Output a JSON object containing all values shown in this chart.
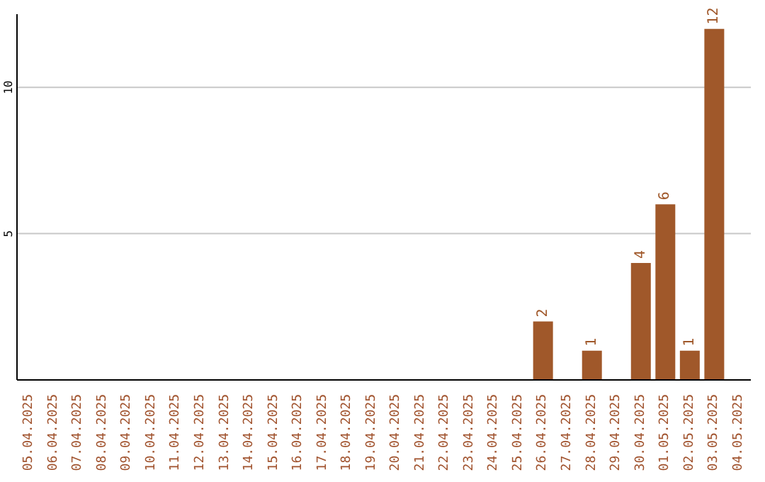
{
  "chart_data": {
    "type": "bar",
    "categories": [
      "05.04.2025",
      "06.04.2025",
      "07.04.2025",
      "08.04.2025",
      "09.04.2025",
      "10.04.2025",
      "11.04.2025",
      "12.04.2025",
      "13.04.2025",
      "14.04.2025",
      "15.04.2025",
      "16.04.2025",
      "17.04.2025",
      "18.04.2025",
      "19.04.2025",
      "20.04.2025",
      "21.04.2025",
      "22.04.2025",
      "23.04.2025",
      "24.04.2025",
      "25.04.2025",
      "26.04.2025",
      "27.04.2025",
      "28.04.2025",
      "29.04.2025",
      "30.04.2025",
      "01.05.2025",
      "02.05.2025",
      "03.05.2025",
      "04.05.2025"
    ],
    "values": [
      0,
      0,
      0,
      0,
      0,
      0,
      0,
      0,
      0,
      0,
      0,
      0,
      0,
      0,
      0,
      0,
      0,
      0,
      0,
      0,
      0,
      2,
      0,
      1,
      0,
      4,
      6,
      1,
      12,
      0
    ],
    "value_labels": [
      null,
      null,
      null,
      null,
      null,
      null,
      null,
      null,
      null,
      null,
      null,
      null,
      null,
      null,
      null,
      null,
      null,
      null,
      null,
      null,
      null,
      "2",
      null,
      "1",
      null,
      "4",
      "6",
      "1",
      "12",
      null
    ],
    "color": "#a0582a",
    "ylim": [
      0,
      12.5
    ],
    "yticks": [
      5,
      10
    ],
    "grid": "y"
  }
}
